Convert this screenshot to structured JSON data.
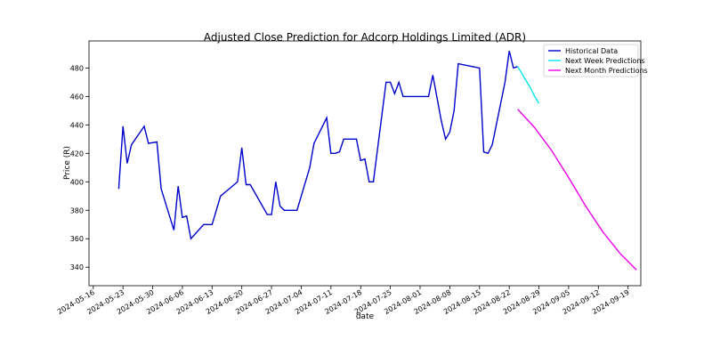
{
  "chart_data": {
    "type": "line",
    "title": "Adjusted Close Prediction for Adcorp Holdings Limited (ADR)",
    "xlabel": "date",
    "ylabel": "Price (R)",
    "ylim": [
      327,
      499
    ],
    "xlim": [
      "2024-05-15",
      "2024-09-22"
    ],
    "yticks": [
      340,
      360,
      380,
      400,
      420,
      440,
      460,
      480
    ],
    "xticks": [
      "2024-05-16",
      "2024-05-23",
      "2024-05-30",
      "2024-06-06",
      "2024-06-13",
      "2024-06-20",
      "2024-06-27",
      "2024-07-04",
      "2024-07-11",
      "2024-07-18",
      "2024-07-25",
      "2024-08-01",
      "2024-08-08",
      "2024-08-15",
      "2024-08-22",
      "2024-08-29",
      "2024-09-05",
      "2024-09-12",
      "2024-09-19"
    ],
    "grid": false,
    "legend_position": "top-right",
    "series": [
      {
        "name": "Historical Data",
        "color": "#0000cc",
        "points": [
          [
            "2024-05-22",
            395
          ],
          [
            "2024-05-23",
            439
          ],
          [
            "2024-05-24",
            413
          ],
          [
            "2024-05-25",
            426
          ],
          [
            "2024-05-28",
            439
          ],
          [
            "2024-05-29",
            427
          ],
          [
            "2024-05-31",
            428
          ],
          [
            "2024-06-01",
            395
          ],
          [
            "2024-06-04",
            366
          ],
          [
            "2024-06-05",
            397
          ],
          [
            "2024-06-06",
            375
          ],
          [
            "2024-06-07",
            376
          ],
          [
            "2024-06-08",
            360
          ],
          [
            "2024-06-11",
            370
          ],
          [
            "2024-06-13",
            370
          ],
          [
            "2024-06-15",
            390
          ],
          [
            "2024-06-19",
            400
          ],
          [
            "2024-06-20",
            424
          ],
          [
            "2024-06-21",
            398
          ],
          [
            "2024-06-22",
            398
          ],
          [
            "2024-06-26",
            377
          ],
          [
            "2024-06-27",
            377
          ],
          [
            "2024-06-28",
            400
          ],
          [
            "2024-06-29",
            383
          ],
          [
            "2024-06-30",
            380
          ],
          [
            "2024-07-03",
            380
          ],
          [
            "2024-07-06",
            410
          ],
          [
            "2024-07-07",
            427
          ],
          [
            "2024-07-10",
            445
          ],
          [
            "2024-07-11",
            420
          ],
          [
            "2024-07-12",
            420
          ],
          [
            "2024-07-13",
            421
          ],
          [
            "2024-07-14",
            430
          ],
          [
            "2024-07-17",
            430
          ],
          [
            "2024-07-18",
            415
          ],
          [
            "2024-07-19",
            416
          ],
          [
            "2024-07-20",
            400
          ],
          [
            "2024-07-21",
            400
          ],
          [
            "2024-07-24",
            470
          ],
          [
            "2024-07-25",
            470
          ],
          [
            "2024-07-26",
            462
          ],
          [
            "2024-07-27",
            470
          ],
          [
            "2024-07-28",
            460
          ],
          [
            "2024-08-03",
            460
          ],
          [
            "2024-08-04",
            475
          ],
          [
            "2024-08-06",
            443
          ],
          [
            "2024-08-07",
            430
          ],
          [
            "2024-08-08",
            435
          ],
          [
            "2024-08-09",
            450
          ],
          [
            "2024-08-10",
            483
          ],
          [
            "2024-08-15",
            480
          ],
          [
            "2024-08-16",
            421
          ],
          [
            "2024-08-17",
            420
          ],
          [
            "2024-08-18",
            426
          ],
          [
            "2024-08-21",
            470
          ],
          [
            "2024-08-22",
            492
          ],
          [
            "2024-08-23",
            480
          ],
          [
            "2024-08-24",
            481
          ]
        ]
      },
      {
        "name": "Next Week Predictions",
        "color": "#00e5ee",
        "points": [
          [
            "2024-08-24",
            481
          ],
          [
            "2024-08-25",
            476
          ],
          [
            "2024-08-26",
            471
          ],
          [
            "2024-08-27",
            466
          ],
          [
            "2024-08-28",
            460
          ],
          [
            "2024-08-29",
            455
          ]
        ]
      },
      {
        "name": "Next Month Predictions",
        "color": "#ee00ee",
        "points": [
          [
            "2024-08-24",
            451
          ],
          [
            "2024-08-28",
            438
          ],
          [
            "2024-09-01",
            422
          ],
          [
            "2024-09-05",
            403
          ],
          [
            "2024-09-09",
            383
          ],
          [
            "2024-09-13",
            365
          ],
          [
            "2024-09-17",
            350
          ],
          [
            "2024-09-21",
            338
          ]
        ]
      }
    ]
  }
}
